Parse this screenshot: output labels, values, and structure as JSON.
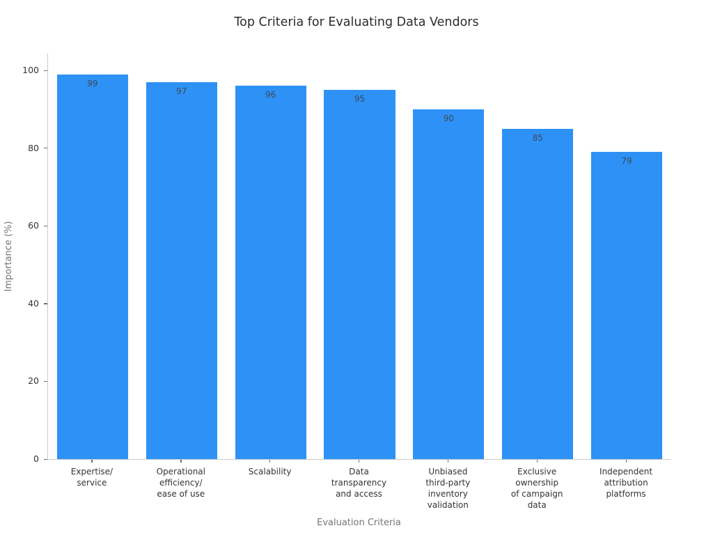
{
  "chart_data": {
    "type": "bar",
    "title": "Top Criteria for Evaluating Data Vendors",
    "xlabel": "Evaluation Criteria",
    "ylabel": "Importance (%)",
    "categories": [
      "Expertise/\nservice",
      "Operational\nefficiency/\nease of use",
      "Scalability",
      "Data\ntransparency\nand access",
      "Unbiased\nthird-party\ninventory\nvalidation",
      "Exclusive\nownership\nof campaign\ndata",
      "Independent\nattribution\nplatforms"
    ],
    "values": [
      99,
      97,
      96,
      95,
      90,
      85,
      79
    ],
    "yticks": [
      0,
      20,
      40,
      60,
      80,
      100
    ],
    "ylim": [
      0,
      104.5
    ],
    "bar_color": "#2e91f5",
    "value_label_color": "#3b4a5a",
    "axis_line_color": "#c9c9c9",
    "tick_mark_color": "#6e6e6e",
    "tick_label_color": "#333333",
    "axis_title_color": "#757575",
    "background_color": "#ffffff",
    "grid": "off",
    "legend": "none",
    "bar_width_fraction": 0.8
  }
}
